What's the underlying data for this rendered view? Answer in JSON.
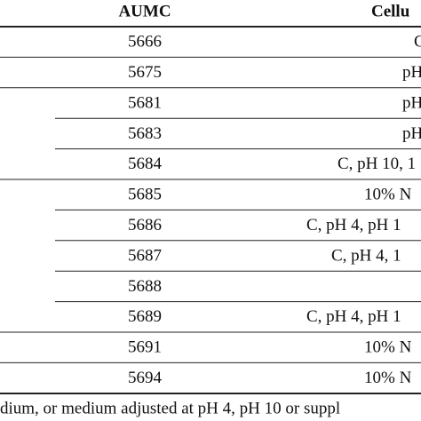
{
  "table": {
    "header": [
      "AUMC",
      "Cellu"
    ],
    "rows": [
      [
        "5666",
        "C"
      ],
      [
        "5675",
        "pH"
      ],
      [
        "5681",
        "pH"
      ],
      [
        "5683",
        "pH"
      ],
      [
        "5684",
        "C, pH 10, 1"
      ],
      [
        "5685",
        "10% N"
      ],
      [
        "5686",
        "C, pH 4, pH 1"
      ],
      [
        "5687",
        "C, pH 4, 1"
      ],
      [
        "5688",
        null
      ],
      [
        "5689",
        "C, pH 4, pH 1"
      ],
      [
        "5691",
        "10% N"
      ],
      [
        "5694",
        "10% N"
      ]
    ],
    "footnote": "dium, or medium adjusted at pH 4, pH 10 or suppl"
  }
}
